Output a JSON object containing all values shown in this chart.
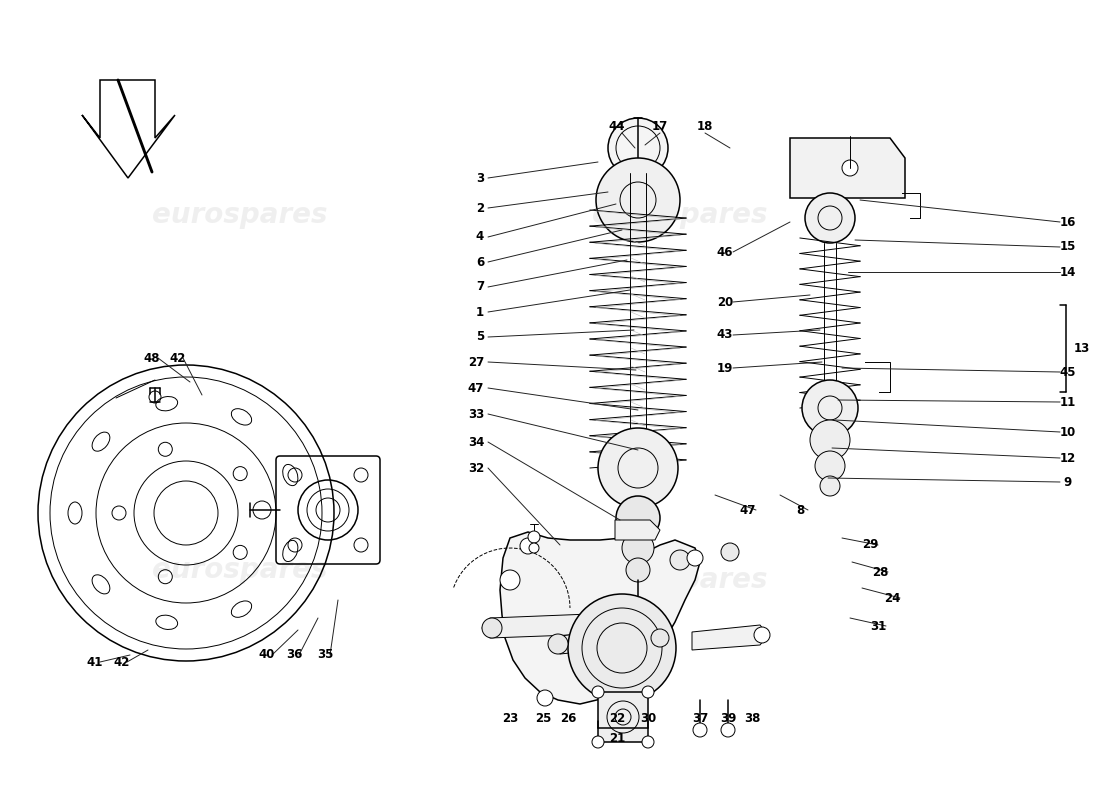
{
  "bg": "#ffffff",
  "lc": "#000000",
  "wm_color": "#cccccc",
  "wm_alpha": 0.3,
  "wm_text": "eurospares",
  "labels_left_col": [
    [
      "3",
      480,
      178
    ],
    [
      "2",
      480,
      208
    ],
    [
      "4",
      480,
      237
    ],
    [
      "6",
      480,
      262
    ],
    [
      "7",
      480,
      287
    ],
    [
      "1",
      480,
      312
    ],
    [
      "5",
      480,
      337
    ],
    [
      "27",
      476,
      362
    ],
    [
      "47",
      476,
      388
    ],
    [
      "33",
      476,
      414
    ],
    [
      "34",
      476,
      442
    ],
    [
      "32",
      476,
      468
    ]
  ],
  "labels_right_col": [
    [
      "16",
      1068,
      222
    ],
    [
      "15",
      1068,
      247
    ],
    [
      "14",
      1068,
      272
    ],
    [
      "45",
      1068,
      372
    ],
    [
      "11",
      1068,
      402
    ],
    [
      "10",
      1068,
      432
    ],
    [
      "12",
      1068,
      458
    ],
    [
      "9",
      1068,
      482
    ]
  ],
  "labels_top": [
    [
      "44",
      617,
      127
    ],
    [
      "17",
      660,
      127
    ],
    [
      "18",
      705,
      127
    ]
  ],
  "labels_mid_right": [
    [
      "46",
      725,
      252
    ],
    [
      "20",
      725,
      302
    ],
    [
      "43",
      725,
      335
    ],
    [
      "19",
      725,
      368
    ],
    [
      "8",
      800,
      510
    ],
    [
      "29",
      870,
      545
    ],
    [
      "28",
      880,
      572
    ],
    [
      "24",
      892,
      598
    ],
    [
      "31",
      878,
      626
    ],
    [
      "47",
      748,
      510
    ]
  ],
  "labels_disc": [
    [
      "48",
      152,
      358
    ],
    [
      "42",
      178,
      358
    ],
    [
      "41",
      95,
      662
    ],
    [
      "42",
      122,
      662
    ],
    [
      "40",
      267,
      655
    ],
    [
      "36",
      294,
      655
    ],
    [
      "35",
      325,
      655
    ]
  ],
  "labels_bottom": [
    [
      "23",
      510,
      718
    ],
    [
      "25",
      543,
      718
    ],
    [
      "26",
      568,
      718
    ],
    [
      "22",
      617,
      718
    ],
    [
      "30",
      648,
      718
    ],
    [
      "21",
      617,
      738
    ],
    [
      "37",
      700,
      718
    ],
    [
      "39",
      728,
      718
    ],
    [
      "38",
      752,
      718
    ]
  ]
}
